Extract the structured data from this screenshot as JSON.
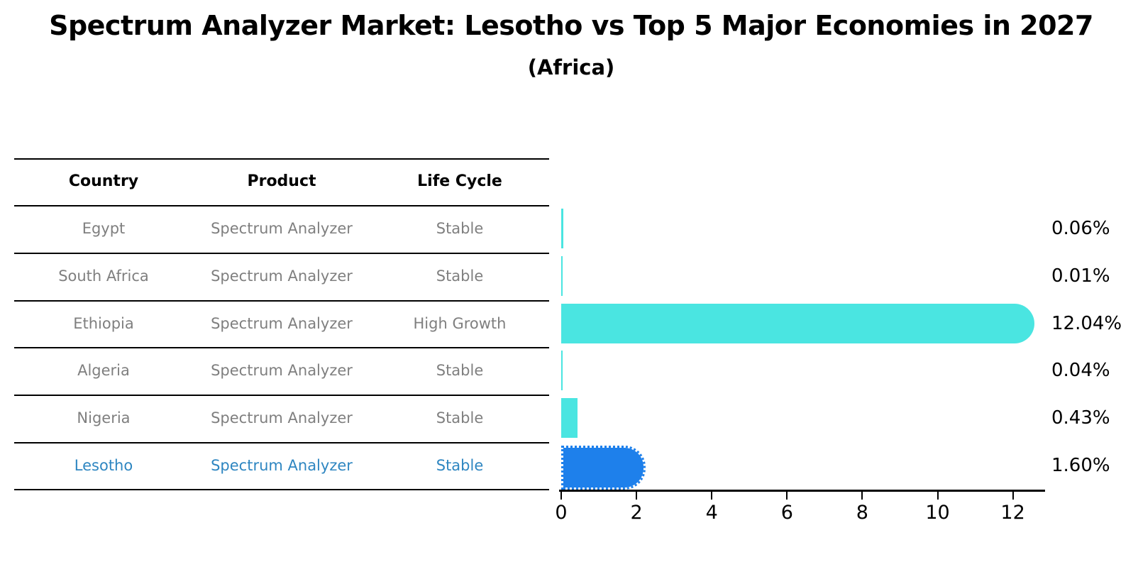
{
  "title": "Spectrum Analyzer Market: Lesotho vs Top 5 Major Economies in 2027",
  "subtitle": "(Africa)",
  "table": {
    "headers": [
      "Country",
      "Product",
      "Life Cycle"
    ],
    "rows": [
      {
        "country": "Egypt",
        "product": "Spectrum Analyzer",
        "life_cycle": "Stable",
        "highlight": false
      },
      {
        "country": "South Africa",
        "product": "Spectrum Analyzer",
        "life_cycle": "Stable",
        "highlight": false
      },
      {
        "country": "Ethiopia",
        "product": "Spectrum Analyzer",
        "life_cycle": "High Growth",
        "highlight": false
      },
      {
        "country": "Algeria",
        "product": "Spectrum Analyzer",
        "life_cycle": "Stable",
        "highlight": false
      },
      {
        "country": "Nigeria",
        "product": "Spectrum Analyzer",
        "life_cycle": "Stable",
        "highlight": false
      },
      {
        "country": "Lesotho",
        "product": "Spectrum Analyzer",
        "life_cycle": "Stable",
        "highlight": true
      }
    ]
  },
  "chart_data": {
    "type": "bar",
    "orientation": "horizontal",
    "title": "Spectrum Analyzer Market: Lesotho vs Top 5 Major Economies in 2027",
    "subtitle": "(Africa)",
    "categories": [
      "Egypt",
      "South Africa",
      "Ethiopia",
      "Algeria",
      "Nigeria",
      "Lesotho"
    ],
    "values": [
      0.06,
      0.01,
      12.04,
      0.04,
      0.43,
      1.6
    ],
    "value_labels": [
      "0.06%",
      "0.01%",
      "12.04%",
      "0.04%",
      "0.43%",
      "1.60%"
    ],
    "x_ticks": [
      0,
      2,
      4,
      6,
      8,
      10,
      12
    ],
    "xlim": [
      0,
      13
    ],
    "grid": false,
    "legend": "none",
    "highlight_index": 5,
    "bar_color": "#4AE5E1",
    "highlight_bar_color": "#1E80EB",
    "highlight_text_color": "#2E86C1",
    "row_text_color": "#7f7f7f"
  }
}
